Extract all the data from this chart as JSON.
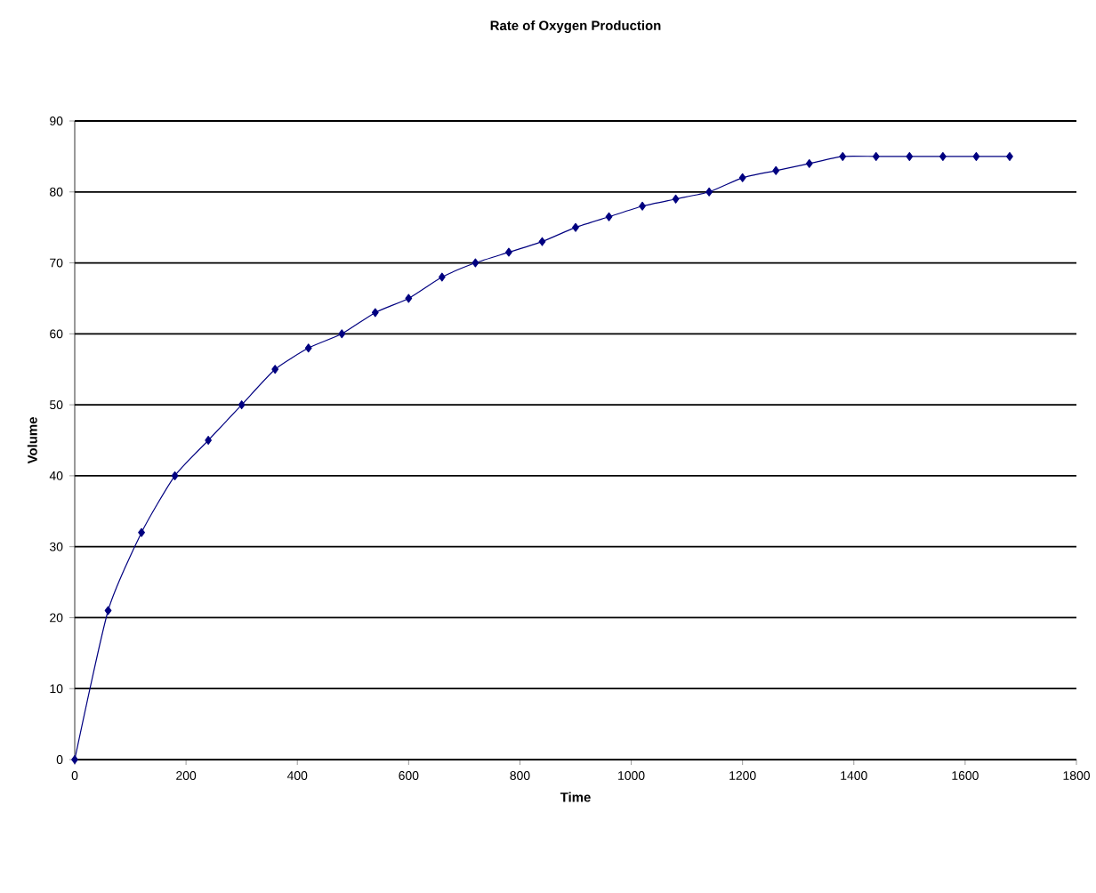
{
  "chart_data": {
    "type": "line",
    "title": "Rate of Oxygen Production",
    "xlabel": "Time",
    "ylabel": "Volume",
    "x": [
      0,
      60,
      120,
      180,
      240,
      300,
      360,
      420,
      480,
      540,
      600,
      660,
      720,
      780,
      840,
      900,
      960,
      1020,
      1080,
      1140,
      1200,
      1260,
      1320,
      1380,
      1440,
      1500,
      1560,
      1620,
      1680
    ],
    "series": [
      {
        "color": "#000080",
        "values": [
          0,
          21,
          32,
          40,
          45,
          50,
          55,
          58,
          60,
          63,
          65,
          68,
          70,
          71.5,
          73,
          75,
          76.5,
          78,
          79,
          80,
          82,
          83,
          84,
          85,
          85,
          85,
          85,
          85,
          85
        ]
      }
    ],
    "xlim": [
      0,
      1800
    ],
    "xticks": [
      0,
      200,
      400,
      600,
      800,
      1000,
      1200,
      1400,
      1600,
      1800
    ],
    "ylim": [
      0,
      90
    ],
    "yticks": [
      0,
      10,
      20,
      30,
      40,
      50,
      60,
      70,
      80,
      90
    ],
    "grid": "y",
    "legend": false,
    "marker": "diamond",
    "line_style": "solid"
  }
}
